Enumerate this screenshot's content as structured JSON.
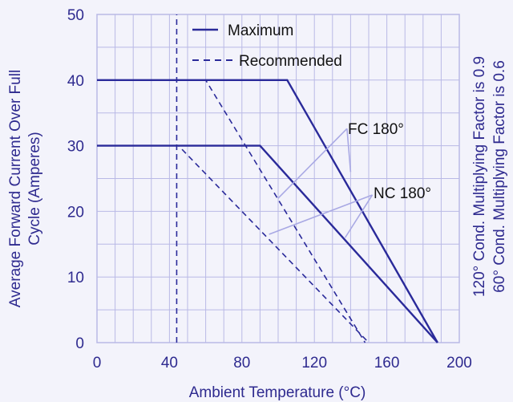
{
  "chart_data": {
    "type": "line",
    "xlabel": "Ambient Temperature (°C)",
    "ylabel_line1": "Average Forward Current Over Full",
    "ylabel_line2": "Cycle (Amperes)",
    "right_label_1": "120° Cond. Multiplying Factor is 0.9",
    "right_label_2": "60° Cond. Multiplying Factor is 0.6",
    "xlim": [
      0,
      200
    ],
    "ylim": [
      0,
      50
    ],
    "xticks": [
      0,
      40,
      80,
      120,
      160,
      200
    ],
    "yticks": [
      0,
      10,
      20,
      30,
      40,
      50
    ],
    "grid": true,
    "legend_position": "top-center",
    "legend": [
      {
        "label": "Maximum",
        "style": "solid"
      },
      {
        "label": "Recommended",
        "style": "dashed"
      }
    ],
    "series": [
      {
        "style": "solid",
        "points": [
          [
            0,
            40
          ],
          [
            105,
            40
          ],
          [
            188,
            0
          ]
        ]
      },
      {
        "style": "solid",
        "points": [
          [
            0,
            30
          ],
          [
            90,
            30
          ],
          [
            188,
            0
          ]
        ]
      },
      {
        "style": "dashed",
        "points": [
          [
            0,
            40
          ],
          [
            60,
            40
          ],
          [
            148,
            0
          ]
        ]
      },
      {
        "style": "dashed",
        "points": [
          [
            0,
            30
          ],
          [
            45,
            30
          ],
          [
            150,
            0
          ]
        ]
      },
      {
        "style": "dashed",
        "points": [
          [
            44,
            0
          ],
          [
            44,
            50
          ]
        ]
      }
    ],
    "annotations": [
      {
        "label": "FC 180°",
        "at": [
          138,
          32.6
        ],
        "targets": [
          [
            100,
            22
          ],
          [
            140,
            26
          ]
        ]
      },
      {
        "label": "NC 180°",
        "at": [
          152,
          22.5
        ],
        "targets": [
          [
            95,
            16.5
          ],
          [
            137,
            16
          ]
        ]
      }
    ]
  },
  "colors": {
    "grid": "#b9b9e6",
    "line": "#2a2a9a",
    "axis_text": "#2e2a8f",
    "leader": "#a9a9e4",
    "background": "#f3f3fb"
  }
}
